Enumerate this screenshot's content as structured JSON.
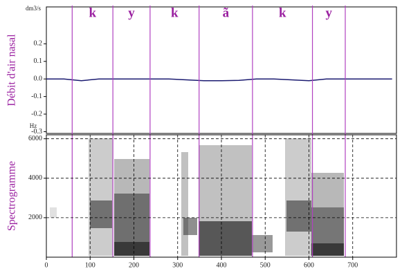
{
  "chart_data": [
    {
      "type": "line",
      "ylabel": "Débit d'air nasal",
      "unit": "dm3/s",
      "x": [
        0,
        40,
        80,
        120,
        160,
        200,
        240,
        280,
        320,
        360,
        400,
        440,
        480,
        520,
        560,
        600,
        640,
        680,
        720,
        760,
        790
      ],
      "series": [
        {
          "color": "#1a1a70",
          "values": [
            0,
            0,
            -0.01,
            0,
            0,
            0,
            0,
            0,
            -0.005,
            -0.01,
            -0.01,
            -0.008,
            0,
            0,
            -0.005,
            -0.01,
            0,
            0,
            0,
            0,
            0
          ]
        }
      ],
      "xlim": [
        0,
        800
      ],
      "ylim": [
        -0.31,
        0.41
      ],
      "yticks": [
        0.2,
        0.1,
        {
          "value": 0,
          "label": "0.0"
        },
        -0.1,
        -0.2,
        -0.3
      ],
      "segments": {
        "labels": [
          "k",
          "y",
          "k",
          "ã",
          "k",
          "y"
        ],
        "boundaries": [
          59,
          152,
          237,
          349,
          471,
          608,
          683
        ],
        "color": "#b040c0"
      }
    },
    {
      "type": "spectrogram",
      "ylabel": "Spectrogramme",
      "unit": "Hz",
      "xlim": [
        0,
        800
      ],
      "ylim": [
        0,
        6200
      ],
      "xticks": [
        0,
        100,
        200,
        300,
        400,
        500,
        600,
        700
      ],
      "yticks": [
        2000,
        4000,
        6000
      ],
      "grid": true
    }
  ]
}
